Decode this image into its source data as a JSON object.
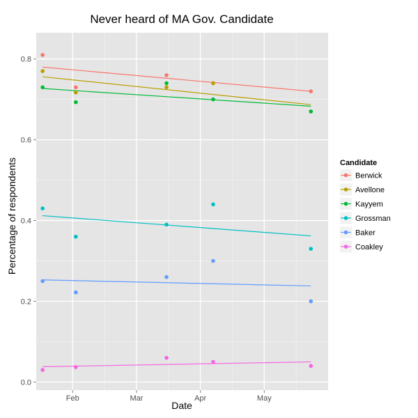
{
  "chart_data": {
    "type": "scatter",
    "title": "Never heard of MA Gov. Candidate",
    "xlabel": "Date",
    "ylabel": "Percentage of respondents",
    "x_ticks": [
      {
        "label": "Feb",
        "x": 1.0
      },
      {
        "label": "Mar",
        "x": 2.0
      },
      {
        "label": "Apr",
        "x": 3.0
      },
      {
        "label": "May",
        "x": 4.0
      }
    ],
    "xlim": [
      0.43,
      5.0
    ],
    "y_ticks": [
      {
        "label": "0.0",
        "y": 0.0
      },
      {
        "label": "0.2",
        "y": 0.2
      },
      {
        "label": "0.4",
        "y": 0.4
      },
      {
        "label": "0.6",
        "y": 0.6
      },
      {
        "label": "0.8",
        "y": 0.8
      }
    ],
    "ylim": [
      -0.02,
      0.865
    ],
    "grid": true,
    "legend_title": "Candidate",
    "legend_position": "right",
    "series": [
      {
        "name": "Berwick",
        "color": "#F8766D",
        "points": [
          {
            "x": 0.53,
            "y": 0.81
          },
          {
            "x": 1.05,
            "y": 0.73
          },
          {
            "x": 2.47,
            "y": 0.76
          },
          {
            "x": 3.2,
            "y": 0.74
          },
          {
            "x": 4.73,
            "y": 0.72
          }
        ],
        "trend": [
          0.78,
          0.72
        ]
      },
      {
        "name": "Avellone",
        "color": "#B79F00",
        "points": [
          {
            "x": 0.53,
            "y": 0.77
          },
          {
            "x": 1.05,
            "y": 0.717
          },
          {
            "x": 2.47,
            "y": 0.73
          },
          {
            "x": 3.2,
            "y": 0.74
          },
          {
            "x": 4.73,
            "y": 0.67
          }
        ],
        "trend": [
          0.756,
          0.687
        ]
      },
      {
        "name": "Kayyem",
        "color": "#00BA38",
        "points": [
          {
            "x": 0.53,
            "y": 0.73
          },
          {
            "x": 1.05,
            "y": 0.693
          },
          {
            "x": 2.47,
            "y": 0.74
          },
          {
            "x": 3.2,
            "y": 0.7
          },
          {
            "x": 4.73,
            "y": 0.67
          }
        ],
        "trend": [
          0.727,
          0.683
        ]
      },
      {
        "name": "Grossman",
        "color": "#00BFC4",
        "points": [
          {
            "x": 0.53,
            "y": 0.43
          },
          {
            "x": 1.05,
            "y": 0.36
          },
          {
            "x": 2.47,
            "y": 0.39
          },
          {
            "x": 3.2,
            "y": 0.44
          },
          {
            "x": 4.73,
            "y": 0.33
          }
        ],
        "trend": [
          0.412,
          0.362
        ]
      },
      {
        "name": "Baker",
        "color": "#619CFF",
        "points": [
          {
            "x": 0.53,
            "y": 0.25
          },
          {
            "x": 1.05,
            "y": 0.222
          },
          {
            "x": 2.47,
            "y": 0.26
          },
          {
            "x": 3.2,
            "y": 0.3
          },
          {
            "x": 4.73,
            "y": 0.2
          }
        ],
        "trend": [
          0.253,
          0.238
        ]
      },
      {
        "name": "Coakley",
        "color": "#F564E3",
        "points": [
          {
            "x": 0.53,
            "y": 0.03
          },
          {
            "x": 1.05,
            "y": 0.037
          },
          {
            "x": 2.47,
            "y": 0.06
          },
          {
            "x": 3.2,
            "y": 0.05
          },
          {
            "x": 4.73,
            "y": 0.04
          }
        ],
        "trend": [
          0.038,
          0.05
        ]
      }
    ]
  }
}
